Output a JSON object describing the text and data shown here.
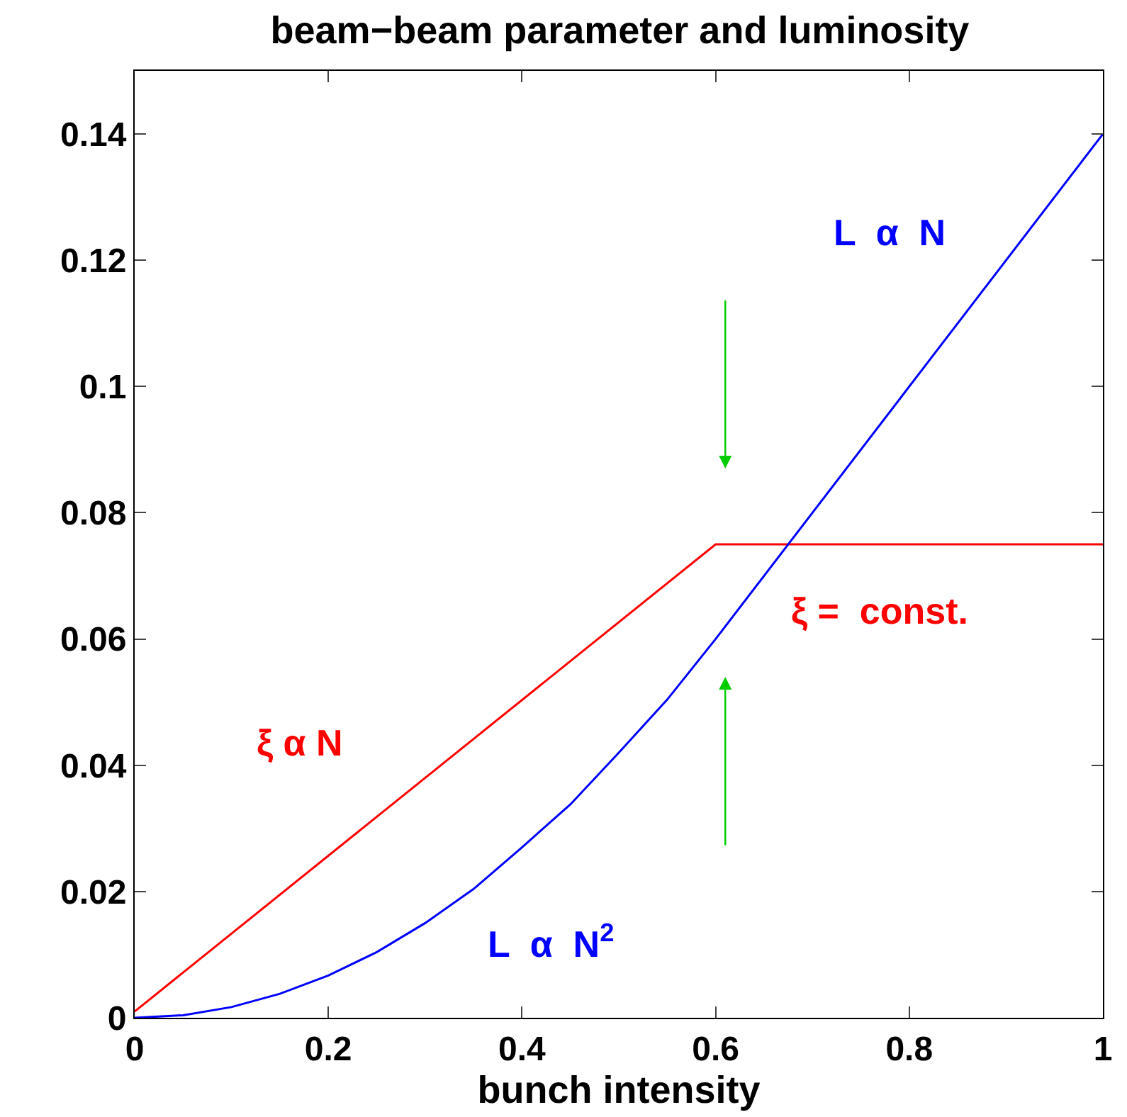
{
  "chart_data": {
    "type": "line",
    "title": "beam−beam parameter and luminosity",
    "xlabel": "bunch intensity",
    "series": [
      {
        "color": "#ff0000",
        "x": [
          0,
          0.6,
          1
        ],
        "values": [
          0.001,
          0.075,
          0.075
        ]
      },
      {
        "color": "#0000ff",
        "x": [
          0,
          0.05,
          0.1,
          0.15,
          0.2,
          0.25,
          0.3,
          0.35,
          0.4,
          0.45,
          0.5,
          0.55,
          0.6,
          1
        ],
        "values": [
          0,
          0.0004,
          0.0017,
          0.0038,
          0.0067,
          0.0104,
          0.015,
          0.0204,
          0.027,
          0.0338,
          0.042,
          0.0504,
          0.06,
          0.14
        ]
      }
    ],
    "annotations": [
      "L  α  N",
      "ξ α N",
      "ξ =  const.",
      "L  α  N$^{2}$"
    ],
    "xlim": [
      0,
      1
    ],
    "ylim": [
      0,
      0.15
    ],
    "xticks": [
      0,
      0.2,
      0.4,
      0.6,
      0.8,
      1
    ],
    "yticks": [
      0,
      0.02,
      0.04,
      0.06,
      0.08,
      0.1,
      0.12,
      0.14
    ],
    "marker": "none",
    "line_style": "solid"
  }
}
